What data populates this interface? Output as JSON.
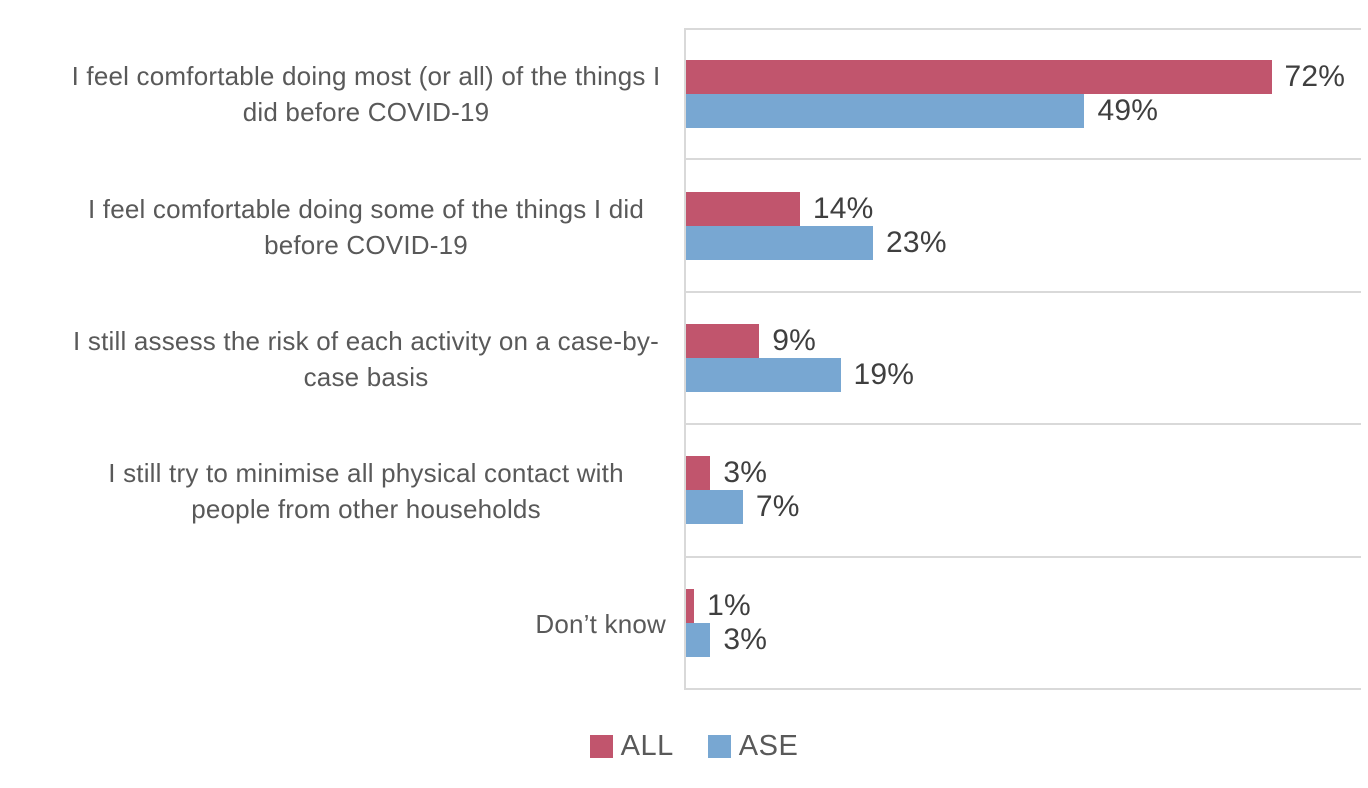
{
  "chart_data": {
    "type": "bar",
    "orientation": "horizontal",
    "title": "",
    "xlabel": "",
    "ylabel": "",
    "categories": [
      "I feel comfortable doing most (or all) of the things I did before COVID-19",
      "I feel comfortable doing some of the things I did before COVID-19",
      "I still assess the risk of each activity on a case-by-case basis",
      "I still try to minimise all physical contact with people from other households",
      "Don’t know"
    ],
    "series": [
      {
        "name": "ALL",
        "color": "#c1556d",
        "values": [
          72,
          14,
          9,
          3,
          1
        ],
        "labels": [
          "72%",
          "14%",
          "9%",
          "3%",
          "1%"
        ]
      },
      {
        "name": "ASE",
        "color": "#78a7d2",
        "values": [
          49,
          23,
          19,
          7,
          3
        ],
        "labels": [
          "49%",
          "23%",
          "19%",
          "7%",
          "3%"
        ]
      }
    ],
    "value_suffix": "%",
    "xlim": [
      0,
      83
    ],
    "grid": "row-separator-lines-and-left-axis",
    "gridline_color": "#d9d9d9",
    "data_labels": "outside-end",
    "legend_position": "bottom-center"
  },
  "legend": {
    "items": [
      {
        "label": "ALL",
        "color": "#c1556d"
      },
      {
        "label": "ASE",
        "color": "#78a7d2"
      }
    ]
  }
}
